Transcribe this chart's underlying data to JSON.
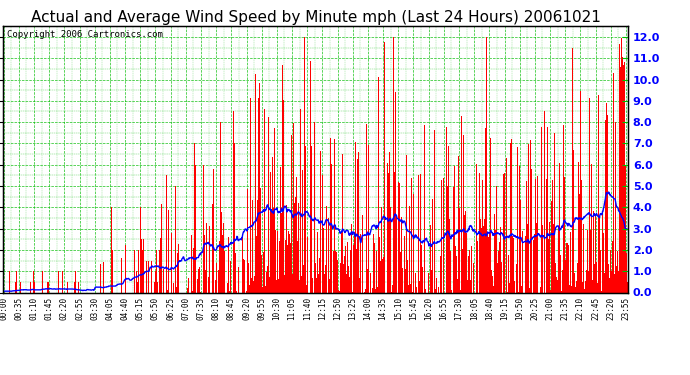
{
  "title": "Actual and Average Wind Speed by Minute mph (Last 24 Hours) 20061021",
  "copyright": "Copyright 2006 Cartronics.com",
  "ylim": [
    0.0,
    12.5
  ],
  "ytick_max": 12.0,
  "bar_color": "#FF0000",
  "line_color": "#0000FF",
  "grid_color": "#00BB00",
  "bg_color": "#FFFFFF",
  "title_fontsize": 11,
  "copyright_fontsize": 6.5,
  "x_tick_interval": 35,
  "total_minutes": 1440
}
